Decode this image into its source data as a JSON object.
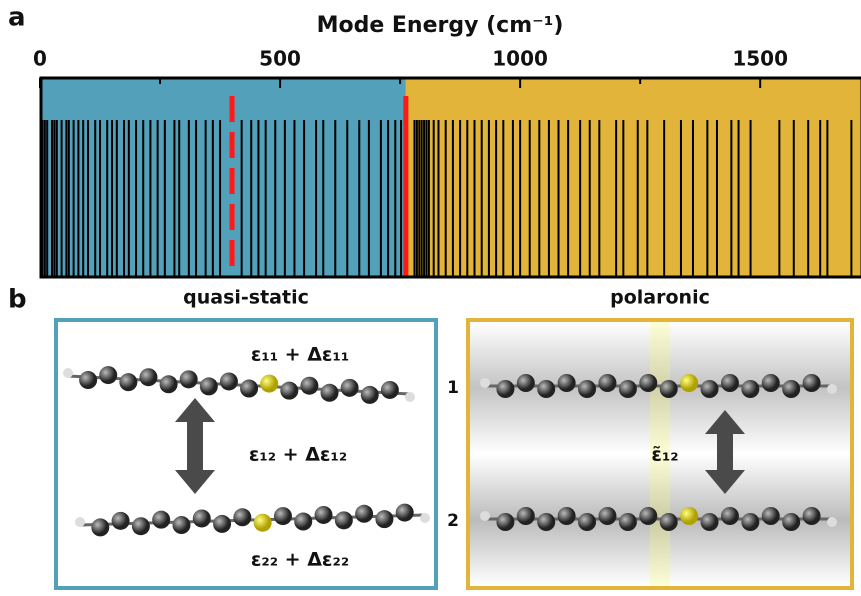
{
  "panel_labels": [
    "a",
    "b"
  ],
  "chart_data": {
    "type": "spectrum",
    "title": "Mode Energy (cm⁻¹)",
    "xlim": [
      0,
      1710
    ],
    "xticks": [
      0,
      500,
      1000,
      1500
    ],
    "minor_xticks": [
      250,
      750,
      1250
    ],
    "regions": [
      {
        "start": 0,
        "end": 762,
        "color": "#52a0b9"
      },
      {
        "start": 762,
        "end": 1710,
        "color": "#e2b53a"
      }
    ],
    "markers": [
      {
        "value": 400,
        "style": "dashed",
        "color": "#ff1a1a"
      },
      {
        "value": 762,
        "style": "solid",
        "color": "#ff1a1a"
      }
    ],
    "mode_color": "#000000",
    "modes": [
      5,
      10,
      15,
      25,
      30,
      35,
      45,
      55,
      60,
      70,
      80,
      90,
      100,
      115,
      125,
      140,
      150,
      160,
      175,
      185,
      200,
      215,
      230,
      245,
      260,
      280,
      290,
      310,
      325,
      345,
      360,
      375,
      420,
      440,
      455,
      470,
      490,
      510,
      530,
      550,
      575,
      590,
      615,
      640,
      665,
      685,
      710,
      725,
      740,
      752,
      780,
      785,
      790,
      795,
      800,
      805,
      810,
      820,
      830,
      845,
      860,
      875,
      890,
      905,
      920,
      935,
      950,
      965,
      985,
      1000,
      1020,
      1040,
      1060,
      1080,
      1100,
      1125,
      1145,
      1165,
      1200,
      1215,
      1245,
      1265,
      1300,
      1335,
      1360,
      1390,
      1410,
      1440,
      1455,
      1480,
      1540,
      1570,
      1600,
      1625,
      1640,
      1690
    ]
  },
  "panels": [
    {
      "title": "quasi-static",
      "labels": [
        "ε₁₁ + Δε₁₁",
        "ε₁₂ + Δε₁₂",
        "ε₂₂ + Δε₂₂"
      ]
    },
    {
      "title": "polaronic",
      "labels": [
        "ε̃₁₂"
      ],
      "molecule_labels": [
        "1",
        "2"
      ]
    }
  ]
}
